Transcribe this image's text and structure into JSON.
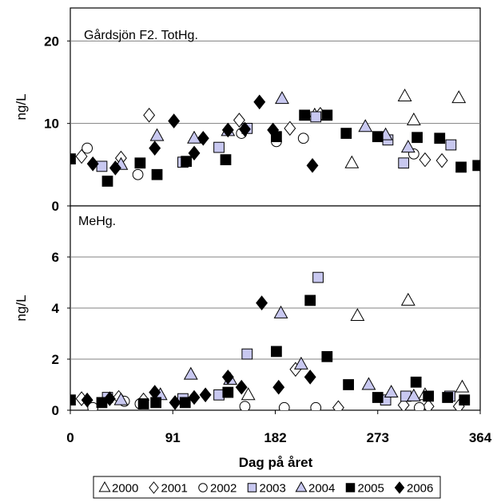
{
  "chart_data": [
    {
      "type": "scatter",
      "title": "Gårdsjön F2. TotHg.",
      "ylabel": "ng/L",
      "xlabel": "",
      "xlim": [
        0,
        364
      ],
      "ylim": [
        0,
        24
      ],
      "yticks": [
        0,
        10,
        20
      ],
      "grid": true,
      "series": [
        {
          "name": "2000",
          "points": [
            [
              217,
              11
            ],
            [
              250,
              5.2
            ],
            [
              297,
              13.3
            ],
            [
              305,
              10.4
            ],
            [
              345,
              13.1
            ]
          ]
        },
        {
          "name": "2001",
          "points": [
            [
              10,
              6
            ],
            [
              45,
              5.8
            ],
            [
              70,
              11
            ],
            [
              150,
              10.4
            ],
            [
              195,
              9.4
            ],
            [
              222,
              11.1
            ],
            [
              315,
              5.6
            ],
            [
              330,
              5.5
            ]
          ]
        },
        {
          "name": "2002",
          "points": [
            [
              15,
              7
            ],
            [
              60,
              3.8
            ],
            [
              152,
              8.8
            ],
            [
              183,
              7.8
            ],
            [
              207,
              8.2
            ],
            [
              305,
              6.3
            ]
          ]
        },
        {
          "name": "2003",
          "points": [
            [
              28,
              4.8
            ],
            [
              100,
              5.3
            ],
            [
              132,
              7.1
            ],
            [
              157,
              9.4
            ],
            [
              218,
              10.8
            ],
            [
              282,
              8
            ],
            [
              296,
              5.2
            ],
            [
              338,
              7.4
            ]
          ]
        },
        {
          "name": "2004",
          "points": [
            [
              45,
              5
            ],
            [
              77,
              8.5
            ],
            [
              110,
              8.2
            ],
            [
              140,
              9.1
            ],
            [
              188,
              13
            ],
            [
              262,
              9.6
            ],
            [
              280,
              8.6
            ],
            [
              300,
              7.1
            ]
          ]
        },
        {
          "name": "2005",
          "points": [
            [
              0,
              5.7
            ],
            [
              33,
              3
            ],
            [
              62,
              5.2
            ],
            [
              77,
              3.8
            ],
            [
              103,
              5.4
            ],
            [
              138,
              5.6
            ],
            [
              183,
              8.4
            ],
            [
              208,
              11
            ],
            [
              228,
              11
            ],
            [
              245,
              8.8
            ],
            [
              273,
              8.4
            ],
            [
              308,
              8.3
            ],
            [
              328,
              8.2
            ],
            [
              347,
              4.7
            ],
            [
              362,
              4.9
            ],
            [
              377,
              4.3
            ]
          ]
        },
        {
          "name": "2006",
          "points": [
            [
              20,
              5.1
            ],
            [
              40,
              4.6
            ],
            [
              75,
              7
            ],
            [
              92,
              10.3
            ],
            [
              110,
              6.4
            ],
            [
              118,
              8.2
            ],
            [
              140,
              9.2
            ],
            [
              155,
              9.3
            ],
            [
              168,
              12.6
            ],
            [
              180,
              9.2
            ],
            [
              215,
              4.9
            ]
          ]
        }
      ]
    },
    {
      "type": "scatter",
      "title": "MeHg.",
      "ylabel": "ng/L",
      "xlabel": "Dag på året",
      "xlim": [
        0,
        364
      ],
      "ylim": [
        0,
        8
      ],
      "yticks": [
        0,
        2,
        4,
        6
      ],
      "xticks": [
        0,
        91,
        182,
        273,
        364
      ],
      "grid": true,
      "legend_position": "bottom",
      "series": [
        {
          "name": "2000",
          "points": [
            [
              158,
              0.6
            ],
            [
              255,
              3.7
            ],
            [
              300,
              4.3
            ],
            [
              315,
              0.6
            ],
            [
              348,
              0.9
            ]
          ]
        },
        {
          "name": "2001",
          "points": [
            [
              10,
              0.45
            ],
            [
              43,
              0.5
            ],
            [
              65,
              0.4
            ],
            [
              200,
              1.6
            ],
            [
              238,
              0.1
            ],
            [
              296,
              0.2
            ],
            [
              318,
              0.15
            ],
            [
              345,
              0.15
            ]
          ]
        },
        {
          "name": "2002",
          "points": [
            [
              20,
              0.1
            ],
            [
              48,
              0.35
            ],
            [
              62,
              0.25
            ],
            [
              155,
              0.15
            ],
            [
              190,
              0.1
            ],
            [
              218,
              0.1
            ],
            [
              310,
              0.1
            ]
          ]
        },
        {
          "name": "2003",
          "points": [
            [
              33,
              0.5
            ],
            [
              100,
              0.45
            ],
            [
              132,
              0.6
            ],
            [
              157,
              2.2
            ],
            [
              220,
              5.2
            ],
            [
              280,
              0.4
            ],
            [
              298,
              0.55
            ],
            [
              337,
              0.55
            ]
          ]
        },
        {
          "name": "2004",
          "points": [
            [
              45,
              0.4
            ],
            [
              80,
              0.6
            ],
            [
              107,
              1.4
            ],
            [
              142,
              1.2
            ],
            [
              187,
              3.8
            ],
            [
              205,
              1.8
            ],
            [
              265,
              1.0
            ],
            [
              285,
              0.7
            ],
            [
              305,
              0.55
            ]
          ]
        },
        {
          "name": "2005",
          "points": [
            [
              0,
              0.4
            ],
            [
              28,
              0.3
            ],
            [
              65,
              0.25
            ],
            [
              76,
              0.3
            ],
            [
              102,
              0.3
            ],
            [
              140,
              0.7
            ],
            [
              183,
              2.3
            ],
            [
              213,
              4.3
            ],
            [
              228,
              2.1
            ],
            [
              247,
              1.0
            ],
            [
              273,
              0.5
            ],
            [
              307,
              1.1
            ],
            [
              318,
              0.55
            ],
            [
              335,
              0.5
            ],
            [
              350,
              0.4
            ],
            [
              370,
              0.45
            ]
          ]
        },
        {
          "name": "2006",
          "points": [
            [
              15,
              0.4
            ],
            [
              35,
              0.45
            ],
            [
              75,
              0.7
            ],
            [
              93,
              0.3
            ],
            [
              110,
              0.5
            ],
            [
              120,
              0.6
            ],
            [
              140,
              1.3
            ],
            [
              152,
              0.9
            ],
            [
              170,
              4.2
            ],
            [
              185,
              0.9
            ],
            [
              213,
              1.3
            ]
          ]
        }
      ]
    }
  ],
  "legend": {
    "items": [
      {
        "label": "2000",
        "symbol": "open-triangle"
      },
      {
        "label": "2001",
        "symbol": "open-diamond"
      },
      {
        "label": "2002",
        "symbol": "open-circle"
      },
      {
        "label": "2003",
        "symbol": "light-blue-square"
      },
      {
        "label": "2004",
        "symbol": "light-blue-triangle"
      },
      {
        "label": "2005",
        "symbol": "black-square"
      },
      {
        "label": "2006",
        "symbol": "black-diamond"
      }
    ]
  },
  "colors": {
    "fill_light_blue": "#c8c8f0",
    "marker_stroke": "#000000",
    "grid": "#808080",
    "background": "#ffffff"
  }
}
